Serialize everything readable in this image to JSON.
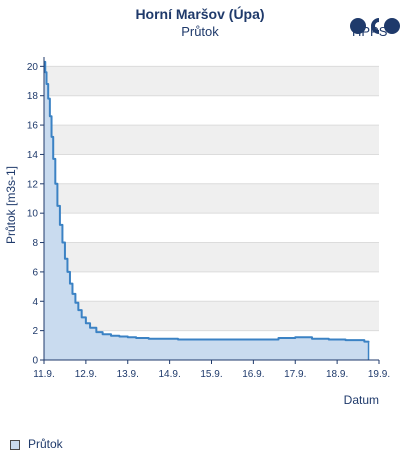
{
  "chart_data": {
    "type": "area",
    "title": "Horní Maršov (Úpa)",
    "subtitle": "Průtok",
    "xlabel": "Datum",
    "ylabel": "Průtok [m3s-1]",
    "x_ticks": [
      "11.9.",
      "12.9.",
      "13.9.",
      "14.9.",
      "15.9.",
      "16.9.",
      "17.9.",
      "18.9.",
      "19.9."
    ],
    "y_ticks": [
      "0",
      "2",
      "4",
      "6",
      "8",
      "10",
      "12",
      "14",
      "16",
      "18",
      "20"
    ],
    "xlim": [
      0,
      8
    ],
    "ylim": [
      0,
      20.5
    ],
    "grid": "horizontal-bands",
    "legend": "bottom-left",
    "series": [
      {
        "name": "Průtok",
        "color": "#3b82c4",
        "fill": "#c9dbef",
        "x": [
          0.0,
          0.03,
          0.06,
          0.1,
          0.14,
          0.18,
          0.22,
          0.27,
          0.32,
          0.38,
          0.44,
          0.5,
          0.56,
          0.62,
          0.68,
          0.75,
          0.82,
          0.9,
          1.0,
          1.1,
          1.25,
          1.4,
          1.6,
          1.8,
          2.0,
          2.2,
          2.5,
          2.8,
          3.2,
          3.6,
          4.0,
          4.4,
          4.8,
          5.2,
          5.6,
          6.0,
          6.4,
          6.8,
          7.2,
          7.5,
          7.65,
          7.75
        ],
        "y": [
          20.3,
          19.6,
          18.8,
          17.8,
          16.6,
          15.2,
          13.7,
          12.0,
          10.5,
          9.2,
          8.0,
          6.9,
          6.0,
          5.2,
          4.5,
          3.9,
          3.4,
          2.9,
          2.5,
          2.2,
          1.9,
          1.75,
          1.65,
          1.6,
          1.55,
          1.5,
          1.45,
          1.45,
          1.4,
          1.4,
          1.4,
          1.4,
          1.4,
          1.4,
          1.5,
          1.55,
          1.45,
          1.4,
          1.35,
          1.35,
          1.25,
          1.2
        ]
      }
    ]
  },
  "logo": {
    "text": "HPPS"
  },
  "legend": {
    "label": "Průtok"
  }
}
